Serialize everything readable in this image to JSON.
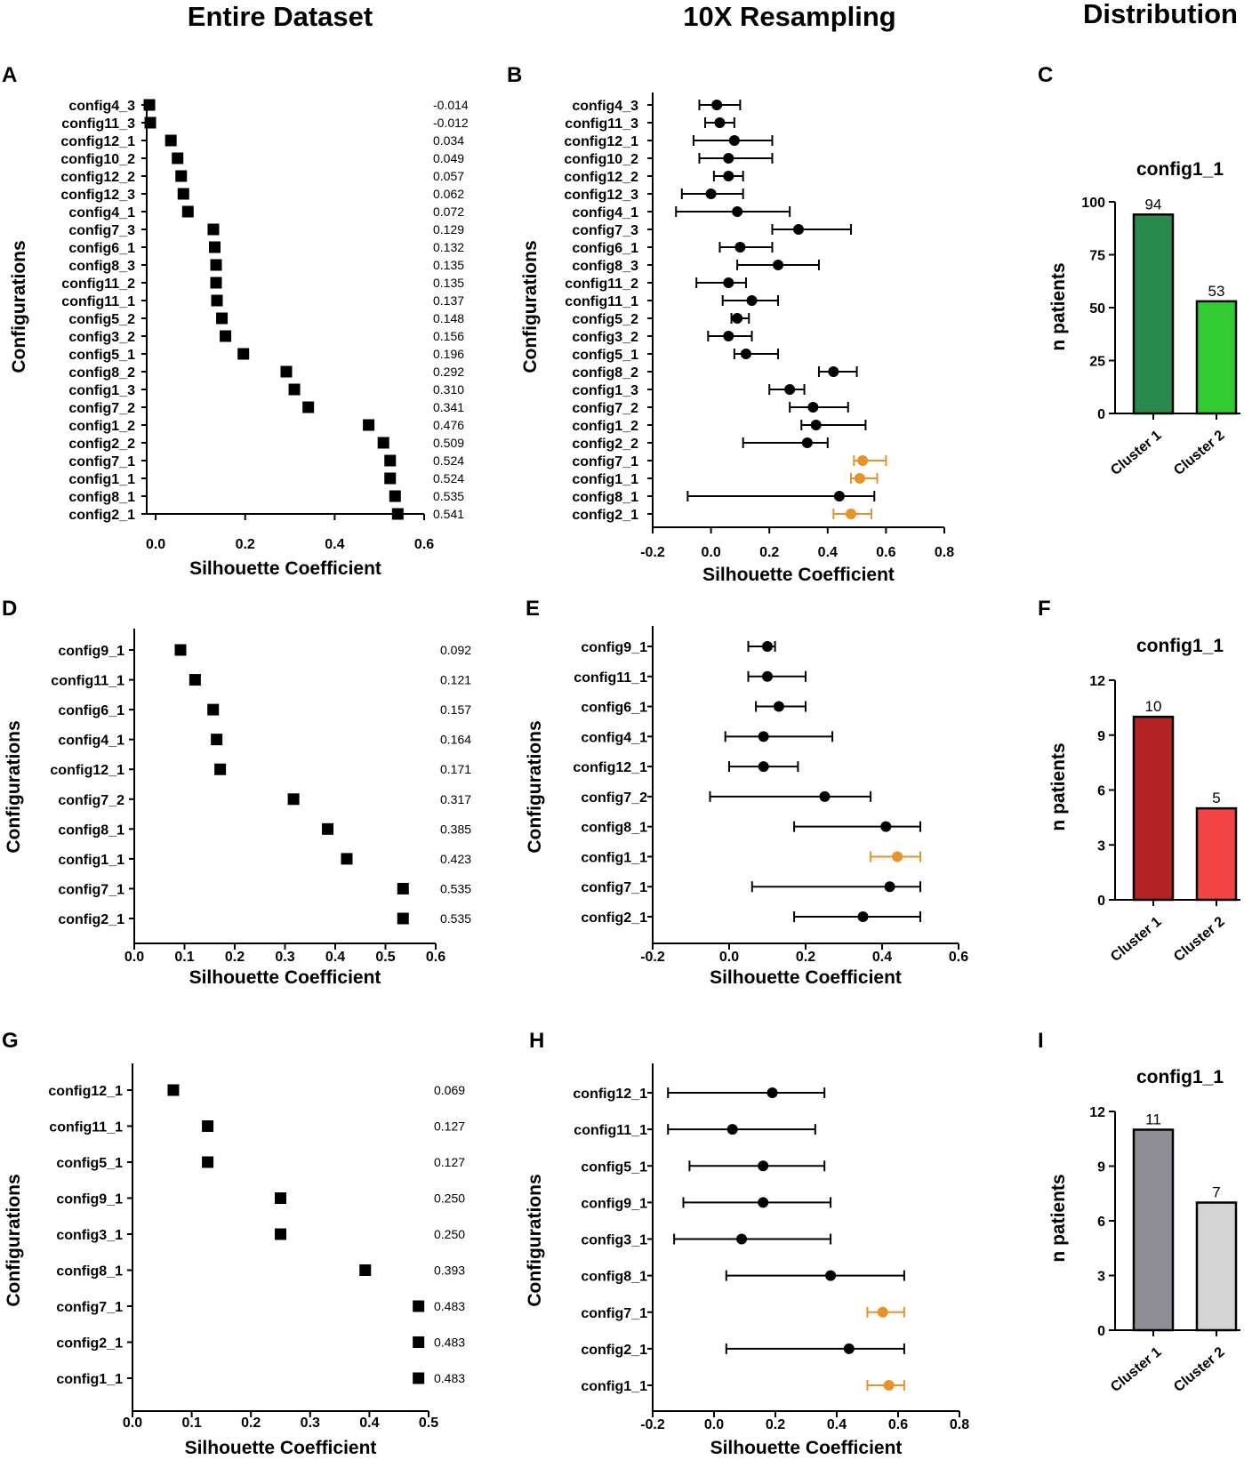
{
  "column_titles": [
    "Entire Dataset",
    "10X Resampling",
    "Distribution"
  ],
  "colors": {
    "ink": "#000000",
    "highlight": "#e8922a"
  },
  "chart_data": [
    {
      "id": "A",
      "type": "scatter",
      "panel_label": "A",
      "xlabel": "Silhouette Coefficient",
      "ylabel": "Configurations",
      "xlim": [
        -0.02,
        0.6
      ],
      "xticks": [
        0.0,
        0.2,
        0.4,
        0.6
      ],
      "xtick_labels": [
        "0.0",
        "0.2",
        "0.4",
        "0.6"
      ],
      "categories": [
        "config4_3",
        "config11_3",
        "config12_1",
        "config10_2",
        "config12_2",
        "config12_3",
        "config4_1",
        "config7_3",
        "config6_1",
        "config8_3",
        "config11_2",
        "config11_1",
        "config5_2",
        "config3_2",
        "config5_1",
        "config8_2",
        "config1_3",
        "config7_2",
        "config1_2",
        "config2_2",
        "config7_1",
        "config1_1",
        "config8_1",
        "config2_1"
      ],
      "values": [
        -0.014,
        -0.012,
        0.034,
        0.049,
        0.057,
        0.062,
        0.072,
        0.129,
        0.132,
        0.135,
        0.135,
        0.137,
        0.148,
        0.156,
        0.196,
        0.292,
        0.31,
        0.341,
        0.476,
        0.509,
        0.524,
        0.524,
        0.535,
        0.541
      ],
      "value_labels": [
        "-0.014",
        "-0.012",
        "0.034",
        "0.049",
        "0.057",
        "0.062",
        "0.072",
        "0.129",
        "0.132",
        "0.135",
        "0.135",
        "0.137",
        "0.148",
        "0.156",
        "0.196",
        "0.292",
        "0.310",
        "0.341",
        "0.476",
        "0.509",
        "0.524",
        "0.524",
        "0.535",
        "0.541"
      ]
    },
    {
      "id": "B",
      "type": "scatter",
      "panel_label": "B",
      "xlabel": "Silhouette Coefficient",
      "ylabel": "Configurations",
      "xlim": [
        -0.2,
        0.8
      ],
      "xticks": [
        -0.2,
        0.0,
        0.2,
        0.4,
        0.6,
        0.8
      ],
      "xtick_labels": [
        "-0.2",
        "0.0",
        "0.2",
        "0.4",
        "0.6",
        "0.8"
      ],
      "categories": [
        "config4_3",
        "config11_3",
        "config12_1",
        "config10_2",
        "config12_2",
        "config12_3",
        "config4_1",
        "config7_3",
        "config6_1",
        "config8_3",
        "config11_2",
        "config11_1",
        "config5_2",
        "config3_2",
        "config5_1",
        "config8_2",
        "config1_3",
        "config7_2",
        "config1_2",
        "config2_2",
        "config7_1",
        "config1_1",
        "config8_1",
        "config2_1"
      ],
      "means": [
        0.02,
        0.03,
        0.08,
        0.06,
        0.06,
        0.0,
        0.09,
        0.3,
        0.1,
        0.23,
        0.06,
        0.14,
        0.09,
        0.06,
        0.12,
        0.42,
        0.27,
        0.35,
        0.36,
        0.33,
        0.52,
        0.51,
        0.44,
        0.48
      ],
      "lower": [
        -0.04,
        -0.02,
        -0.06,
        -0.04,
        0.01,
        -0.1,
        -0.12,
        0.21,
        0.03,
        0.09,
        -0.05,
        0.04,
        0.07,
        -0.01,
        0.08,
        0.37,
        0.2,
        0.27,
        0.31,
        0.11,
        0.49,
        0.48,
        -0.08,
        0.42
      ],
      "upper": [
        0.1,
        0.08,
        0.21,
        0.21,
        0.11,
        0.11,
        0.27,
        0.48,
        0.21,
        0.37,
        0.12,
        0.23,
        0.13,
        0.14,
        0.23,
        0.5,
        0.32,
        0.47,
        0.53,
        0.4,
        0.6,
        0.57,
        0.56,
        0.55
      ],
      "highlighted": [
        "config7_1",
        "config1_1",
        "config2_1"
      ]
    },
    {
      "id": "C",
      "type": "bar",
      "panel_label": "C",
      "title": "config1_1",
      "ylabel": "n patients",
      "ylim": [
        0,
        100
      ],
      "yticks": [
        0,
        25,
        50,
        75,
        100
      ],
      "categories": [
        "Cluster 1",
        "Cluster 2"
      ],
      "values": [
        94,
        53
      ],
      "colors": [
        "#2a8a4e",
        "#33cc33"
      ]
    },
    {
      "id": "D",
      "type": "scatter",
      "panel_label": "D",
      "xlabel": "Silhouette Coefficient",
      "ylabel": "Configurations",
      "xlim": [
        0,
        0.6
      ],
      "xticks": [
        0.0,
        0.1,
        0.2,
        0.3,
        0.4,
        0.5,
        0.6
      ],
      "xtick_labels": [
        "0.0",
        "0.1",
        "0.2",
        "0.3",
        "0.4",
        "0.5",
        "0.6"
      ],
      "categories": [
        "config9_1",
        "config11_1",
        "config6_1",
        "config4_1",
        "config12_1",
        "config7_2",
        "config8_1",
        "config1_1",
        "config7_1",
        "config2_1"
      ],
      "values": [
        0.092,
        0.121,
        0.157,
        0.164,
        0.171,
        0.317,
        0.385,
        0.423,
        0.535,
        0.535
      ],
      "value_labels": [
        "0.092",
        "0.121",
        "0.157",
        "0.164",
        "0.171",
        "0.317",
        "0.385",
        "0.423",
        "0.535",
        "0.535"
      ]
    },
    {
      "id": "E",
      "type": "scatter",
      "panel_label": "E",
      "xlabel": "Silhouette Coefficient",
      "ylabel": "Configurations",
      "xlim": [
        -0.2,
        0.6
      ],
      "xticks": [
        -0.2,
        0.0,
        0.2,
        0.4,
        0.6
      ],
      "xtick_labels": [
        "-0.2",
        "0.0",
        "0.2",
        "0.4",
        "0.6"
      ],
      "categories": [
        "config9_1",
        "config11_1",
        "config6_1",
        "config4_1",
        "config12_1",
        "config7_2",
        "config8_1",
        "config1_1",
        "config7_1",
        "config2_1"
      ],
      "means": [
        0.1,
        0.1,
        0.13,
        0.09,
        0.09,
        0.25,
        0.41,
        0.44,
        0.42,
        0.35
      ],
      "lower": [
        0.05,
        0.05,
        0.07,
        -0.01,
        0.0,
        -0.05,
        0.17,
        0.37,
        0.06,
        0.17
      ],
      "upper": [
        0.12,
        0.2,
        0.2,
        0.27,
        0.18,
        0.37,
        0.5,
        0.5,
        0.5,
        0.5
      ],
      "highlighted": [
        "config1_1"
      ]
    },
    {
      "id": "F",
      "type": "bar",
      "panel_label": "F",
      "title": "config1_1",
      "ylabel": "n patients",
      "ylim": [
        0,
        12
      ],
      "yticks": [
        0,
        3,
        6,
        9,
        12
      ],
      "categories": [
        "Cluster 1",
        "Cluster 2"
      ],
      "values": [
        10,
        5
      ],
      "colors": [
        "#b32224",
        "#f24444"
      ]
    },
    {
      "id": "G",
      "type": "scatter",
      "panel_label": "G",
      "xlabel": "Silhouette Coefficient",
      "ylabel": "Configurations",
      "xlim": [
        0,
        0.5
      ],
      "xticks": [
        0.0,
        0.1,
        0.2,
        0.3,
        0.4,
        0.5
      ],
      "xtick_labels": [
        "0.0",
        "0.1",
        "0.2",
        "0.3",
        "0.4",
        "0.5"
      ],
      "categories": [
        "config12_1",
        "config11_1",
        "config5_1",
        "config9_1",
        "config3_1",
        "config8_1",
        "config7_1",
        "config2_1",
        "config1_1"
      ],
      "values": [
        0.069,
        0.127,
        0.127,
        0.25,
        0.25,
        0.393,
        0.483,
        0.483,
        0.483
      ],
      "value_labels": [
        "0.069",
        "0.127",
        "0.127",
        "0.250",
        "0.250",
        "0.393",
        "0.483",
        "0.483",
        "0.483"
      ]
    },
    {
      "id": "H",
      "type": "scatter",
      "panel_label": "H",
      "xlabel": "Silhouette Coefficient",
      "ylabel": "Configurations",
      "xlim": [
        -0.2,
        0.8
      ],
      "xticks": [
        -0.2,
        0.0,
        0.2,
        0.4,
        0.6,
        0.8
      ],
      "xtick_labels": [
        "-0.2",
        "0.0",
        "0.2",
        "0.4",
        "0.6",
        "0.8"
      ],
      "categories": [
        "config12_1",
        "config11_1",
        "config5_1",
        "config9_1",
        "config3_1",
        "config8_1",
        "config7_1",
        "config2_1",
        "config1_1"
      ],
      "means": [
        0.19,
        0.06,
        0.16,
        0.16,
        0.09,
        0.38,
        0.55,
        0.44,
        0.57
      ],
      "lower": [
        -0.15,
        -0.15,
        -0.08,
        -0.1,
        -0.13,
        0.04,
        0.5,
        0.04,
        0.5
      ],
      "upper": [
        0.36,
        0.33,
        0.36,
        0.38,
        0.38,
        0.62,
        0.62,
        0.62,
        0.62
      ],
      "highlighted": [
        "config7_1",
        "config1_1"
      ]
    },
    {
      "id": "I",
      "type": "bar",
      "panel_label": "I",
      "title": "config1_1",
      "ylabel": "n patients",
      "ylim": [
        0,
        12
      ],
      "yticks": [
        0,
        3,
        6,
        9,
        12
      ],
      "categories": [
        "Cluster 1",
        "Cluster 2"
      ],
      "values": [
        11,
        7
      ],
      "colors": [
        "#8e8e94",
        "#d4d4d4"
      ]
    }
  ]
}
